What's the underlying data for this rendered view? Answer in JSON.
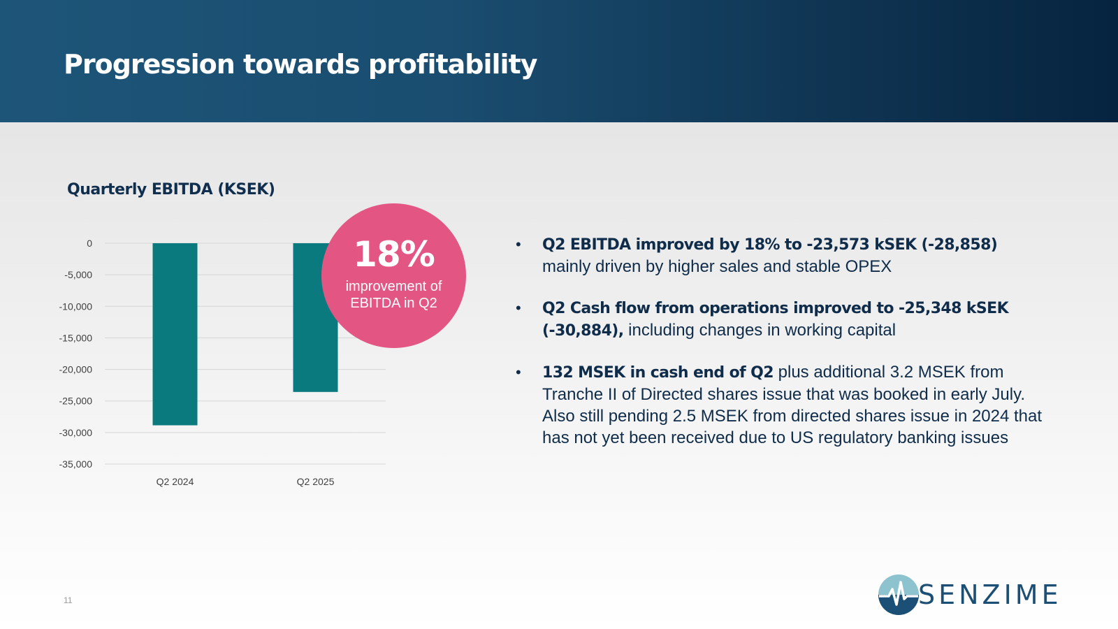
{
  "header": {
    "title": "Progression towards profitability"
  },
  "chart_data": {
    "type": "bar",
    "title": "Quarterly EBITDA (KSEK)",
    "categories": [
      "Q2 2024",
      "Q2 2025"
    ],
    "values": [
      -28858,
      -23573
    ],
    "ylim": [
      -35000,
      0
    ],
    "yticks": [
      0,
      -5000,
      -10000,
      -15000,
      -20000,
      -25000,
      -30000,
      -35000
    ],
    "ytick_labels": [
      "0",
      "-5,000",
      "-10,000",
      "-15,000",
      "-20,000",
      "-25,000",
      "-30,000",
      "-35,000"
    ],
    "grid": true,
    "bar_color": "#0b7a7e"
  },
  "callout": {
    "value": "18%",
    "text": "improvement of EBITDA in Q2",
    "color": "#e35683"
  },
  "bullets": [
    {
      "bold": "Q2 EBITDA improved by 18% to -23,573 kSEK (-28,858)",
      "text": " mainly driven by higher sales and stable OPEX"
    },
    {
      "bold": "Q2 Cash flow from operations improved to -25,348 kSEK (-30,884),",
      "text": " including changes in working capital"
    },
    {
      "bold": "132 MSEK in cash end of Q2",
      "text": " plus additional 3.2 MSEK from Tranche II of Directed shares issue that was booked in early July. Also still pending 2.5 MSEK from directed shares issue in 2024 that has not yet been received due to US regulatory banking issues"
    }
  ],
  "footer": {
    "page_number": "11",
    "logo_text": "SENZIME",
    "logo_icon": "heartbeat-circle-icon"
  }
}
